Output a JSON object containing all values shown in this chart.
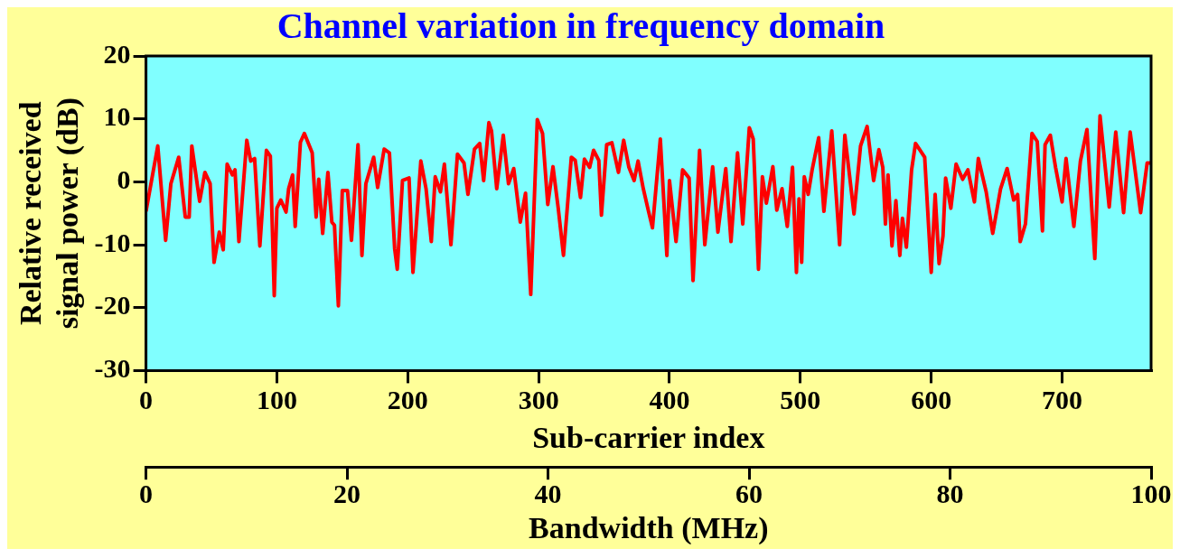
{
  "chart_data": {
    "type": "line",
    "title": "Channel variation in frequency domain",
    "xlabel": "Sub-carrier index",
    "ylabel": "Relative received signal power (dB)",
    "x2label": "Bandwidth (MHz)",
    "xlim": [
      0,
      768
    ],
    "xticks": [
      0,
      100,
      200,
      300,
      400,
      500,
      600,
      700
    ],
    "ylim": [
      -30,
      20
    ],
    "yticks": [
      -30,
      -20,
      -10,
      0,
      10,
      20
    ],
    "x2lim": [
      0,
      100
    ],
    "x2ticks": [
      0,
      20,
      40,
      60,
      80,
      100
    ],
    "grid": false,
    "legend": false,
    "marker": "none",
    "line_style": "solid",
    "series": [
      {
        "color": "#ff0000",
        "x": [
          0,
          9,
          15,
          19,
          25,
          30,
          33,
          35,
          41,
          45,
          49,
          52,
          56,
          59,
          62,
          66,
          68,
          71,
          77,
          80,
          83,
          87,
          92,
          95,
          98,
          100,
          103,
          107,
          109,
          112,
          114,
          118,
          121,
          127,
          130,
          132,
          135,
          139,
          142,
          144,
          147,
          150,
          154,
          157,
          162,
          165,
          168,
          174,
          177,
          182,
          186,
          190,
          192,
          196,
          201,
          204,
          210,
          214,
          218,
          221,
          225,
          228,
          233,
          238,
          243,
          246,
          251,
          255,
          258,
          262,
          264,
          268,
          273,
          277,
          281,
          286,
          290,
          294,
          299,
          303,
          307,
          311,
          315,
          319,
          325,
          328,
          332,
          335,
          339,
          342,
          346,
          348,
          352,
          356,
          361,
          365,
          369,
          373,
          376,
          380,
          384,
          387,
          393,
          398,
          400,
          405,
          410,
          415,
          418,
          423,
          427,
          433,
          437,
          443,
          447,
          452,
          456,
          461,
          464,
          468,
          471,
          474,
          479,
          482,
          486,
          490,
          494,
          497,
          499,
          501,
          503,
          506,
          509,
          514,
          518,
          524,
          530,
          534,
          541,
          546,
          551,
          556,
          560,
          563,
          565,
          567,
          570,
          573,
          576,
          578,
          581,
          585,
          588,
          595,
          600,
          603,
          606,
          609,
          611,
          615,
          619,
          624,
          628,
          633,
          636,
          642,
          647,
          653,
          658,
          663,
          666,
          668,
          672,
          677,
          681,
          685,
          687,
          691,
          695,
          700,
          703,
          709,
          714,
          719,
          725,
          729,
          736,
          741,
          747,
          752,
          760,
          765,
          768
        ],
        "values": [
          -4.7,
          5.7,
          -9.3,
          -0.3,
          3.9,
          -5.6,
          -5.6,
          5.7,
          -3.1,
          1.5,
          -0.3,
          -12.8,
          -8.0,
          -10.8,
          2.8,
          1.1,
          1.9,
          -9.5,
          6.6,
          3.3,
          3.7,
          -10.2,
          5.0,
          4.1,
          -18.1,
          -4.2,
          -2.9,
          -4.8,
          -1.1,
          1.1,
          -7.1,
          6.3,
          7.7,
          4.6,
          -5.6,
          0.4,
          -8.2,
          1.5,
          -6.4,
          -6.9,
          -19.7,
          -1.4,
          -1.4,
          -9.3,
          5.9,
          -11.7,
          -0.3,
          3.9,
          -0.9,
          5.2,
          4.6,
          -10.6,
          -13.9,
          0.2,
          0.6,
          -14.4,
          3.3,
          -1.1,
          -9.5,
          0.8,
          -1.6,
          2.8,
          -10.0,
          4.4,
          3.0,
          -2.0,
          5.2,
          6.1,
          0.2,
          9.4,
          8.1,
          -1.1,
          7.4,
          -0.3,
          2.1,
          -6.4,
          -1.8,
          -17.9,
          9.9,
          7.7,
          -3.6,
          2.4,
          -4.2,
          -11.7,
          3.9,
          3.4,
          -2.5,
          3.6,
          2.3,
          5.0,
          3.4,
          -5.3,
          5.9,
          6.2,
          1.5,
          6.6,
          2.3,
          0.2,
          3.3,
          -1.1,
          -4.7,
          -7.3,
          6.8,
          -11.7,
          0.2,
          -9.5,
          1.9,
          0.6,
          -15.7,
          5.0,
          -10.0,
          2.4,
          -8.0,
          2.1,
          -9.5,
          4.6,
          -6.7,
          8.6,
          6.8,
          -13.9,
          0.8,
          -3.4,
          2.4,
          -4.5,
          -1.1,
          -7.1,
          2.3,
          -14.4,
          -2.7,
          -12.8,
          0.8,
          -2.0,
          1.9,
          7.0,
          -4.7,
          8.1,
          -10.0,
          7.4,
          -5.1,
          5.7,
          8.8,
          0.2,
          5.1,
          2.3,
          -6.7,
          1.1,
          -10.2,
          -3.0,
          -11.7,
          -5.8,
          -10.4,
          1.9,
          6.1,
          3.9,
          -14.4,
          -2.0,
          -13.0,
          -8.6,
          0.6,
          -4.2,
          2.8,
          0.4,
          1.9,
          -3.2,
          3.7,
          -1.6,
          -8.2,
          -1.1,
          2.1,
          -2.9,
          -2.0,
          -9.5,
          -6.7,
          7.7,
          6.4,
          -7.8,
          5.9,
          7.4,
          2.3,
          -3.2,
          3.7,
          -7.1,
          3.3,
          8.3,
          -12.2,
          10.5,
          -4.0,
          7.9,
          -4.9,
          7.9,
          -4.9,
          3.0,
          3.0
        ]
      }
    ]
  }
}
